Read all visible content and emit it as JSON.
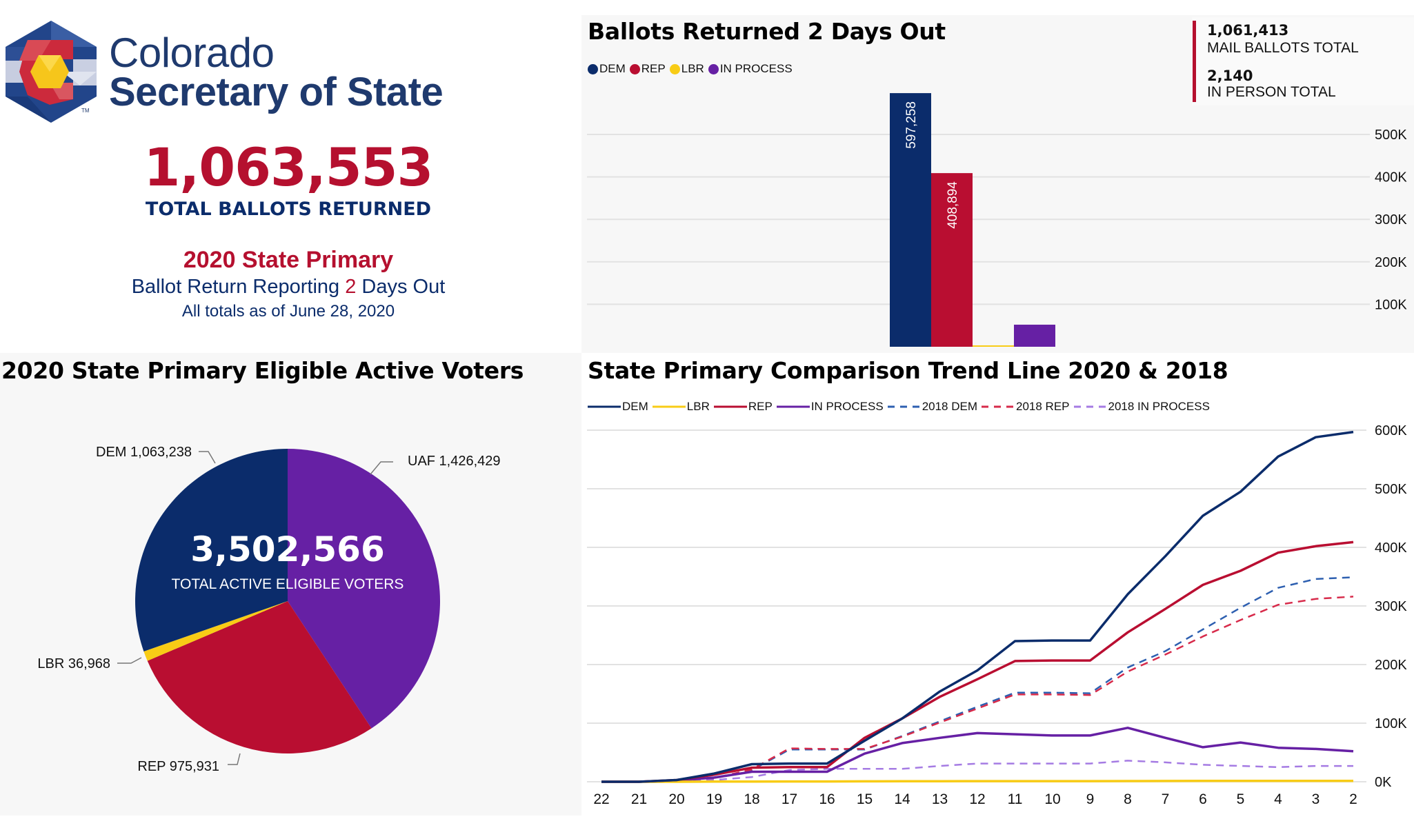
{
  "header": {
    "org_line1": "Colorado",
    "org_line2": "Secretary of State",
    "trademark": "TM",
    "total_ballots_returned": "1,063,553",
    "total_ballots_label": "TOTAL BALLOTS RETURNED",
    "election_title": "2020 State Primary",
    "reporting_prefix": "Ballot Return Reporting ",
    "reporting_days": "2",
    "reporting_suffix": " Days Out",
    "as_of": "All totals as of June 28, 2020"
  },
  "colors": {
    "dem": "#0b2c6b",
    "rep": "#b90e31",
    "lbr": "#f8cc16",
    "in_process": "#6620a4",
    "uaf": "#6620a4",
    "dem_2018": "#2d5fb0",
    "rep_2018": "#d72a4a",
    "in_process_2018": "#a57be3",
    "accent_red": "#b5102f"
  },
  "info_box": {
    "mail_total": "1,061,413",
    "mail_label": "MAIL BALLOTS TOTAL",
    "in_person_total": "2,140",
    "in_person_label": "IN PERSON TOTAL"
  },
  "chart_data": [
    {
      "type": "bar",
      "title": "Ballots Returned 2 Days Out",
      "legend": [
        "DEM",
        "REP",
        "LBR",
        "IN PROCESS"
      ],
      "legend_position": "top-left",
      "categories": [
        "DEM",
        "REP",
        "LBR",
        "IN PROCESS"
      ],
      "values": [
        597258,
        408894,
        1500,
        52000
      ],
      "data_labels": [
        "597,258",
        "408,894",
        "",
        ""
      ],
      "yticks": [
        100000,
        200000,
        300000,
        400000,
        500000
      ],
      "ytick_labels": [
        "100K",
        "200K",
        "300K",
        "400K",
        "500K"
      ],
      "ylim": [
        0,
        500000
      ],
      "grid": true,
      "y_axis_side": "right"
    },
    {
      "type": "pie",
      "title": "2020 State Primary Eligible Active Voters",
      "center_value": "3,502,566",
      "center_label": "TOTAL ACTIVE ELIGIBLE VOTERS",
      "slices": [
        {
          "name": "UAF",
          "value": 1426429,
          "label": "UAF 1,426,429"
        },
        {
          "name": "REP",
          "value": 975931,
          "label": "REP 975,931"
        },
        {
          "name": "LBR",
          "value": 36968,
          "label": "LBR 36,968"
        },
        {
          "name": "DEM",
          "value": 1063238,
          "label": "DEM 1,063,238"
        }
      ]
    },
    {
      "type": "line",
      "title": "State Primary Comparison Trend Line 2020 & 2018",
      "legend_position": "top-left",
      "x": [
        "22",
        "21",
        "20",
        "19",
        "18",
        "17",
        "16",
        "15",
        "14",
        "13",
        "12",
        "11",
        "10",
        "9",
        "8",
        "7",
        "6",
        "5",
        "4",
        "3",
        "2"
      ],
      "series": [
        {
          "name": "DEM",
          "style": "solid",
          "values": [
            0,
            0,
            3000,
            14000,
            30000,
            31000,
            31000,
            70000,
            108000,
            154000,
            190000,
            240000,
            241000,
            241000,
            320000,
            385000,
            454000,
            495000,
            555000,
            588000,
            597000
          ]
        },
        {
          "name": "LBR",
          "style": "solid",
          "values": [
            0,
            0,
            0,
            200,
            400,
            500,
            500,
            700,
            800,
            900,
            1000,
            1100,
            1100,
            1100,
            1200,
            1300,
            1400,
            1400,
            1500,
            1500,
            1500
          ]
        },
        {
          "name": "REP",
          "style": "solid",
          "values": [
            0,
            0,
            3000,
            12000,
            24000,
            25000,
            25000,
            75000,
            108000,
            145000,
            175000,
            206000,
            207000,
            207000,
            255000,
            295000,
            336000,
            360000,
            391000,
            402000,
            409000
          ]
        },
        {
          "name": "IN PROCESS",
          "style": "solid",
          "values": [
            0,
            0,
            2000,
            7000,
            17000,
            17000,
            17000,
            48000,
            66000,
            75000,
            83000,
            81000,
            79000,
            79000,
            92000,
            75000,
            59000,
            67000,
            58000,
            56000,
            52000
          ]
        },
        {
          "name": "2018 DEM",
          "style": "dashed",
          "values": [
            0,
            0,
            1000,
            6000,
            20000,
            55000,
            55000,
            55000,
            78000,
            103000,
            128000,
            152000,
            152000,
            151000,
            195000,
            223000,
            260000,
            297000,
            331000,
            346000,
            349000
          ]
        },
        {
          "name": "2018 REP",
          "style": "dashed",
          "values": [
            0,
            0,
            1000,
            6000,
            21000,
            57000,
            56000,
            56000,
            77000,
            101000,
            125000,
            149000,
            149000,
            148000,
            188000,
            217000,
            248000,
            276000,
            302000,
            312000,
            316000
          ]
        },
        {
          "name": "2018 IN PROCESS",
          "style": "dashed",
          "values": [
            0,
            0,
            0,
            3000,
            8000,
            20000,
            22000,
            22000,
            22000,
            27000,
            31000,
            31000,
            31000,
            31000,
            36000,
            33000,
            29000,
            27000,
            25000,
            27000,
            27000
          ]
        }
      ],
      "yticks": [
        0,
        100000,
        200000,
        300000,
        400000,
        500000,
        600000
      ],
      "ytick_labels": [
        "0K",
        "100K",
        "200K",
        "300K",
        "400K",
        "500K",
        "600K"
      ],
      "ylim": [
        0,
        600000
      ],
      "xlabel": "",
      "ylabel": "",
      "grid": true,
      "y_axis_side": "right"
    }
  ]
}
